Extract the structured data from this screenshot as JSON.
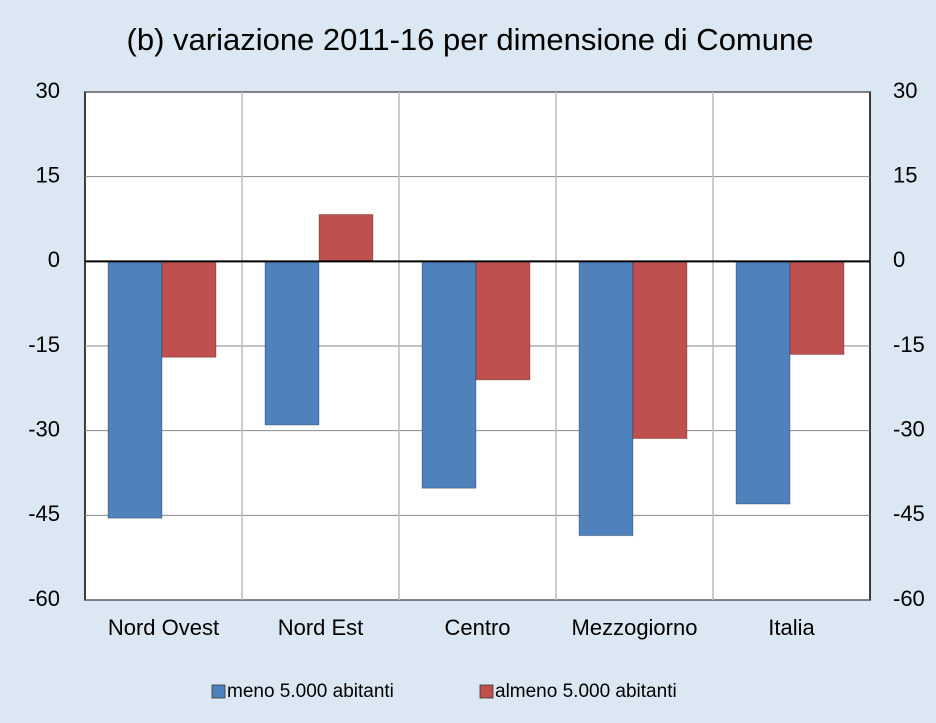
{
  "chart_data": {
    "type": "bar",
    "title": "(b) variazione 2011-16 per dimensione di Comune",
    "categories": [
      "Nord Ovest",
      "Nord Est",
      "Centro",
      "Mezzogiorno",
      "Italia"
    ],
    "series": [
      {
        "name": "meno 5.000 abitanti",
        "color": "#4f81bd",
        "values": [
          -45.5,
          -29,
          -40.2,
          -48.6,
          -43
        ]
      },
      {
        "name": "almeno 5.000 abitanti",
        "color": "#c0504d",
        "values": [
          -17,
          8.3,
          -21,
          -31.4,
          -16.5
        ]
      }
    ],
    "ylim": [
      -60,
      30
    ],
    "yticks": [
      -60,
      -45,
      -30,
      -15,
      0,
      15,
      30
    ],
    "y2lim": [
      -60,
      30
    ],
    "y2ticks": [
      -60,
      -45,
      -30,
      -15,
      0,
      15,
      30
    ],
    "grid": true,
    "legend": "bottom"
  }
}
